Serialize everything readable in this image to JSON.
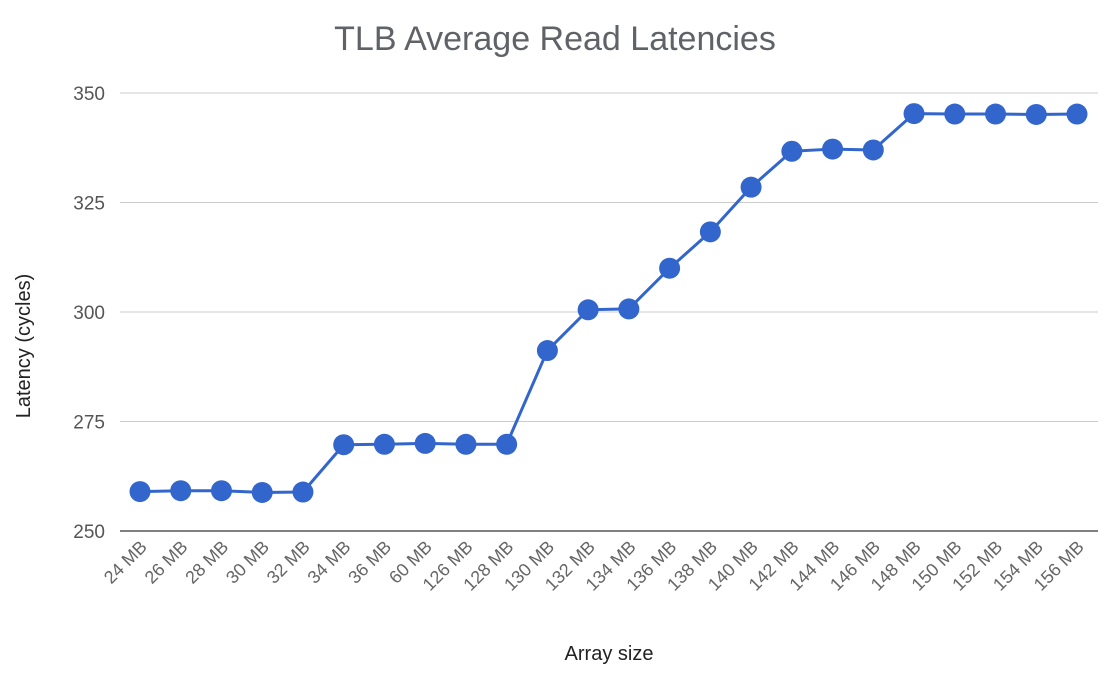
{
  "chart_data": {
    "type": "line",
    "title": "TLB Average Read Latencies",
    "xlabel": "Array size",
    "ylabel": "Latency (cycles)",
    "ylim": [
      250,
      350
    ],
    "yticks": [
      250,
      275,
      300,
      325,
      350
    ],
    "grid": true,
    "legend": "none",
    "categories": [
      "24 MB",
      "26 MB",
      "28 MB",
      "30 MB",
      "32 MB",
      "34 MB",
      "36 MB",
      "60 MB",
      "126 MB",
      "128 MB",
      "130 MB",
      "132 MB",
      "134 MB",
      "136 MB",
      "138 MB",
      "140 MB",
      "142 MB",
      "144 MB",
      "146 MB",
      "148 MB",
      "150 MB",
      "152 MB",
      "154 MB",
      "156 MB"
    ],
    "series": [
      {
        "color": "#3366cc",
        "values": [
          259,
          259.2,
          259.2,
          258.8,
          258.9,
          269.7,
          269.8,
          270,
          269.8,
          269.8,
          291.2,
          300.5,
          300.7,
          310,
          318.3,
          328.5,
          336.7,
          337.2,
          337,
          345.3,
          345.2,
          345.2,
          345.1,
          345.2
        ]
      }
    ]
  }
}
